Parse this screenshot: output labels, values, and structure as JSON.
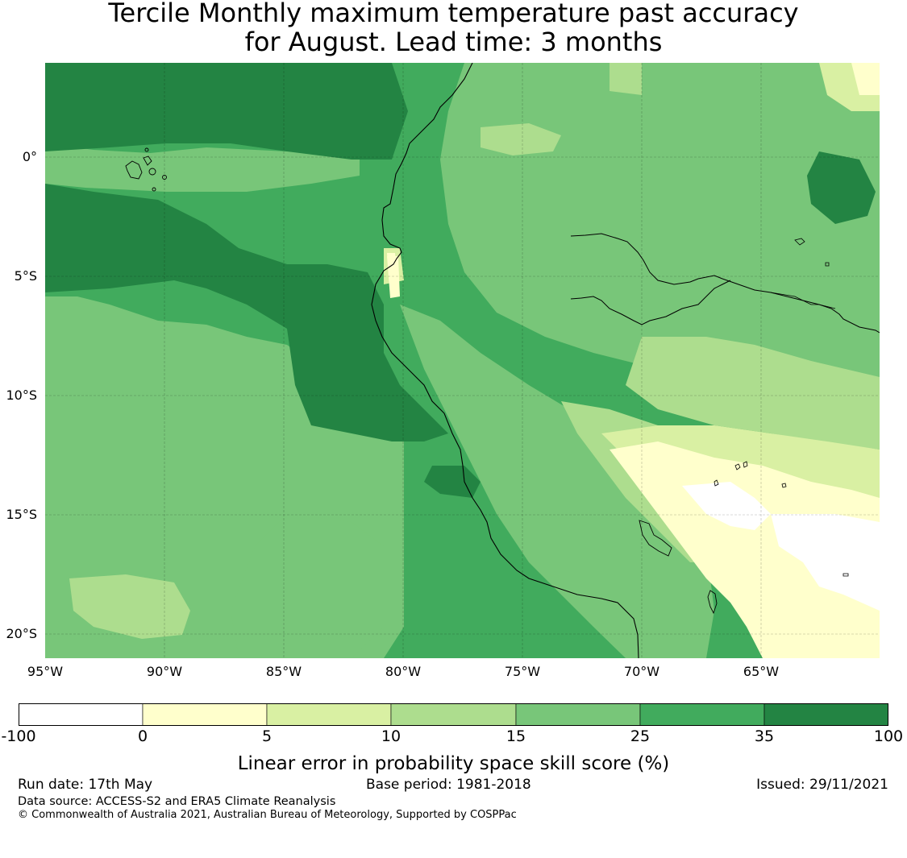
{
  "title": {
    "line1": "Tercile Monthly maximum temperature past accuracy",
    "line2": "for August. Lead time: 3 months"
  },
  "map": {
    "lat_labels": [
      "0°",
      "5°S",
      "10°S",
      "15°S",
      "20°S"
    ],
    "lon_labels": [
      "95°W",
      "90°W",
      "85°W",
      "80°W",
      "75°W",
      "70°W",
      "65°W"
    ],
    "extent": {
      "lon_min": -95,
      "lon_max": -60,
      "lat_min": -21,
      "lat_max": 4
    },
    "grid": true
  },
  "legend": {
    "ticks": [
      "-100",
      "0",
      "5",
      "10",
      "15",
      "25",
      "35",
      "100"
    ],
    "colors": [
      "#ffffff",
      "#ffffcc",
      "#d9f0a3",
      "#addd8e",
      "#78c679",
      "#41ab5d",
      "#238443"
    ],
    "label": "Linear error in probability space skill score (%)"
  },
  "footer": {
    "run_date": "Run date: 17th May",
    "base_period": "Base period: 1981-2018",
    "issued": "Issued: 29/11/2021",
    "data_source": "Data source: ACCESS-S2 and ERA5 Climate Reanalysis",
    "copyright": "© Commonwealth of Australia 2021, Australian Bureau of Meteorology, Supported by COSPPac"
  }
}
